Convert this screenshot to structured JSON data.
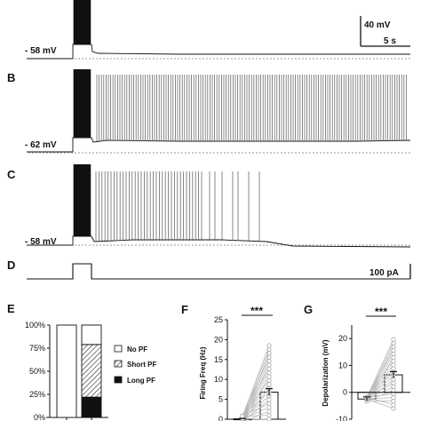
{
  "panels": {
    "A": {
      "resting_label": "- 58 mV",
      "scale_v": "40 mV",
      "scale_t": "5 s"
    },
    "B": {
      "letter": "B",
      "resting_label": "- 62 mV"
    },
    "C": {
      "letter": "C",
      "resting_label": "- 58 mV"
    },
    "D": {
      "letter": "D",
      "current_label": "100 pA"
    },
    "E": {
      "letter": "E"
    },
    "F": {
      "letter": "F",
      "significance": "***"
    },
    "G": {
      "letter": "G",
      "significance": "***"
    }
  },
  "colors": {
    "trace": "#111111",
    "dense_trace": "#6b6b6b",
    "paired_lines": "#b8b8b8",
    "bar": "#ffffff"
  },
  "chart_data": [
    {
      "panel": "E",
      "type": "bar",
      "stacked": true,
      "categories": [
        "",
        ""
      ],
      "series": [
        {
          "name": "Long PF",
          "values": [
            0,
            22
          ]
        },
        {
          "name": "Short PF",
          "values": [
            0,
            57
          ]
        },
        {
          "name": "No PF",
          "values": [
            100,
            21
          ]
        }
      ],
      "yticks": [
        "0%",
        "25%",
        "50%",
        "75%",
        "100%"
      ],
      "ylim": [
        0,
        100
      ],
      "legend": "right"
    },
    {
      "panel": "F",
      "type": "bar",
      "ylabel": "Firing Freq (Hz)",
      "yticks": [
        "0",
        "5",
        "10",
        "15",
        "20",
        "25"
      ],
      "ylim": [
        0,
        25
      ],
      "values": [
        0.1,
        6.8
      ],
      "error": [
        0.1,
        0.9
      ],
      "paired": true,
      "significance": "***"
    },
    {
      "panel": "G",
      "type": "bar",
      "ylabel": "Depolarization (mV)",
      "yticks": [
        "-10",
        "0",
        "10",
        "20"
      ],
      "ylim": [
        -10,
        25
      ],
      "values": [
        -2.5,
        6.5
      ],
      "error": [
        0.8,
        1.2
      ],
      "paired": true,
      "significance": "***"
    }
  ]
}
